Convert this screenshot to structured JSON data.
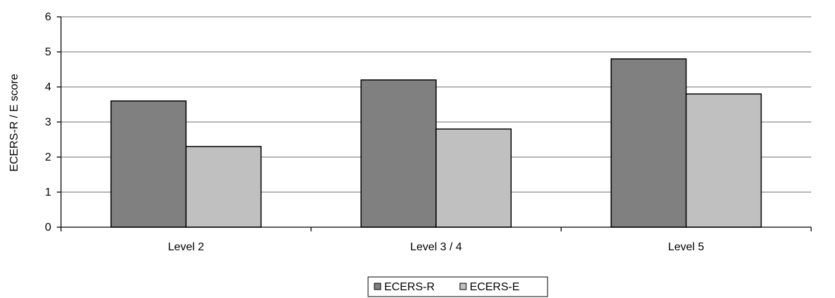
{
  "chart_data": {
    "type": "bar",
    "title": "",
    "xlabel": "",
    "ylabel": "ECERS-R / E score",
    "categories": [
      "Level 2",
      "Level 3 / 4",
      "Level 5"
    ],
    "series": [
      {
        "name": "ECERS-R",
        "values": [
          3.6,
          4.2,
          4.8
        ],
        "color": "#808080"
      },
      {
        "name": "ECERS-E",
        "values": [
          2.3,
          2.8,
          3.8
        ],
        "color": "#c0c0c0"
      }
    ],
    "ylim": [
      0,
      6
    ],
    "yticks": [
      "0",
      "1",
      "2",
      "3",
      "4",
      "5",
      "6"
    ],
    "grid": true,
    "legend_position": "bottom"
  }
}
